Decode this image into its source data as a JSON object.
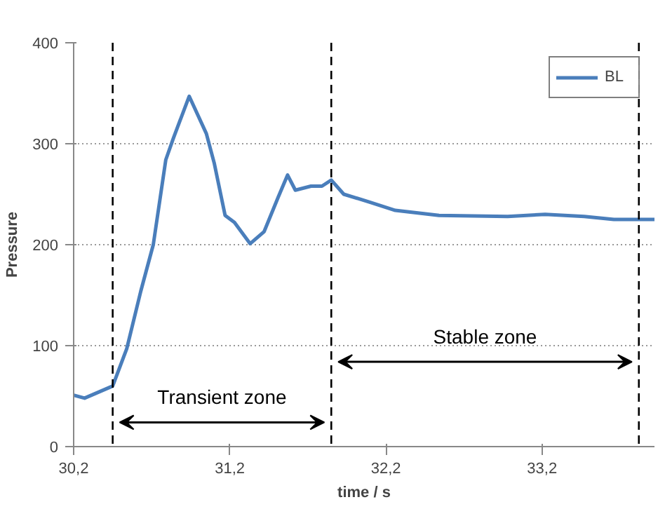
{
  "chart_data": {
    "type": "line",
    "xlabel": "time / s",
    "ylabel": "Pressure",
    "xlim": [
      30.2,
      33.92
    ],
    "ylim": [
      0,
      400
    ],
    "xticks": [
      {
        "value": 30.2,
        "label": "30,2"
      },
      {
        "value": 31.2,
        "label": "31,2"
      },
      {
        "value": 32.2,
        "label": "32,2"
      },
      {
        "value": 33.2,
        "label": "33,2"
      }
    ],
    "yticks": [
      0,
      100,
      200,
      300,
      400
    ],
    "grid": "y",
    "legend": "top right",
    "line_style": "solid",
    "series": [
      {
        "name": "BL",
        "color": "#4a7ebb",
        "x": [
          30.2,
          30.27,
          30.45,
          30.54,
          30.63,
          30.71,
          30.79,
          30.84,
          30.94,
          31.05,
          31.1,
          31.17,
          31.23,
          31.33,
          31.42,
          31.51,
          31.57,
          31.62,
          31.72,
          31.79,
          31.85,
          31.93,
          32.1,
          32.26,
          32.54,
          32.98,
          33.22,
          33.47,
          33.66,
          33.92
        ],
        "values": [
          51,
          48,
          60,
          97,
          154,
          200,
          284,
          306,
          347,
          310,
          281,
          229,
          222,
          201,
          213,
          247,
          269,
          254,
          258,
          258,
          264,
          250,
          242,
          234,
          229,
          228,
          230,
          228,
          225,
          225
        ]
      }
    ],
    "ref_lines": [
      {
        "axis": "x",
        "value": 30.45,
        "label": null,
        "color": "#000000",
        "line_style": "dashed"
      },
      {
        "axis": "x",
        "value": 31.85,
        "label": null,
        "color": "#000000",
        "line_style": "dashed"
      },
      {
        "axis": "x",
        "value": 33.82,
        "label": null,
        "color": "#000000",
        "line_style": "dashed"
      }
    ],
    "annotations": [
      "Transient zone",
      "Stable zone"
    ]
  }
}
